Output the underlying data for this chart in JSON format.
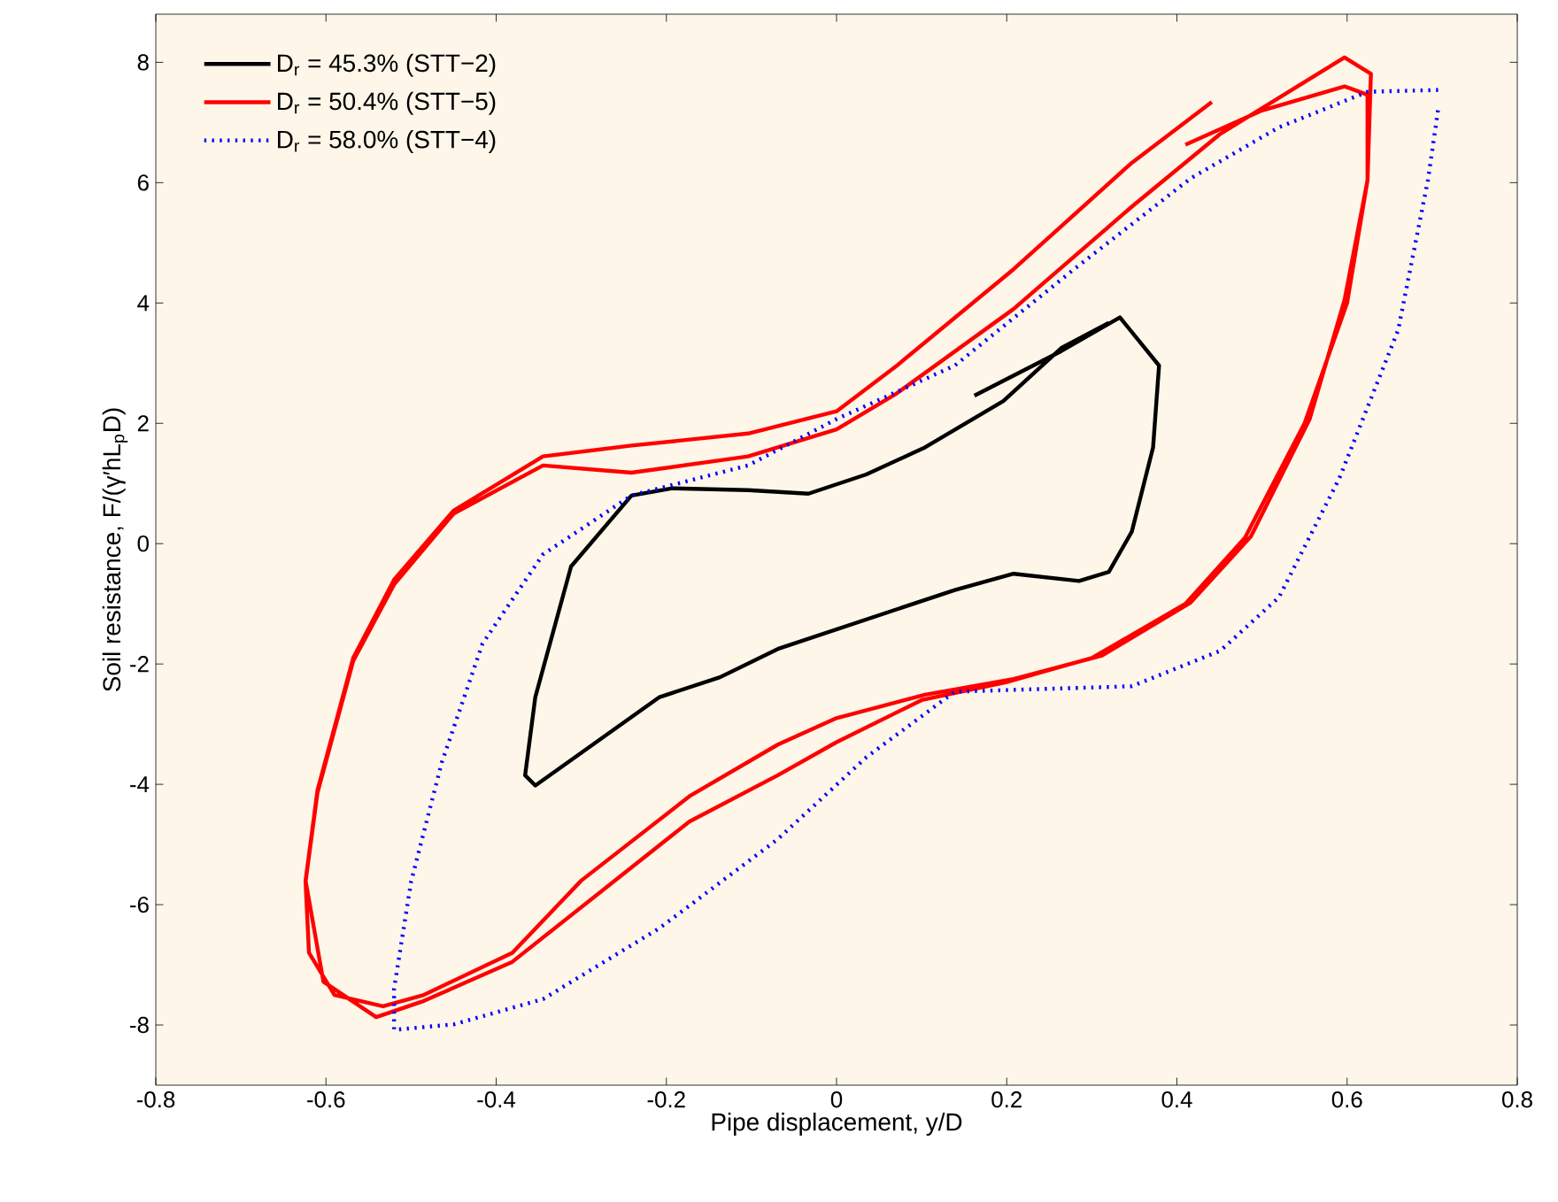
{
  "chart_data": {
    "type": "line",
    "xlabel": "Pipe displacement, y/D",
    "ylabel": "Soil resistance, F/(γ′hL$_{p}$D)",
    "xlim": [
      -0.8,
      0.8
    ],
    "ylim": [
      -9,
      8.8
    ],
    "xticks": [
      -0.8,
      -0.6,
      -0.4,
      -0.2,
      0,
      0.2,
      0.4,
      0.6,
      0.8
    ],
    "yticks": [
      -8,
      -6,
      -4,
      -2,
      0,
      2,
      4,
      6,
      8
    ],
    "grid": false,
    "legend": "top left",
    "series": [
      {
        "name": "D$_{r}$ = 45.3% (STT−2)",
        "color": "#000000",
        "line_style": "solid",
        "x": [
          0.162,
          0.264,
          0.333,
          0.379,
          0.372,
          0.347,
          0.32,
          0.285,
          0.208,
          0.139,
          -0.069,
          -0.137,
          -0.208,
          -0.354,
          -0.366,
          -0.354,
          -0.312,
          -0.241,
          -0.193,
          -0.104,
          -0.033,
          0.035,
          0.104,
          0.196,
          0.264,
          0.32
        ],
        "values": [
          2.46,
          3.2,
          3.76,
          2.96,
          1.6,
          0.2,
          -0.47,
          -0.62,
          -0.5,
          -0.77,
          -1.75,
          -2.22,
          -2.55,
          -4.02,
          -3.85,
          -2.55,
          -0.38,
          0.8,
          0.92,
          0.89,
          0.83,
          1.15,
          1.6,
          2.37,
          3.25,
          3.67
        ]
      },
      {
        "name": "D$_{r}$ = 50.4% (STT−5)",
        "color": "#ff0000",
        "line_style": "solid",
        "x": [
          0.41,
          0.5,
          0.597,
          0.624,
          0.624,
          0.597,
          0.556,
          0.487,
          0.416,
          0.312,
          0.208,
          0.104,
          0,
          -0.069,
          -0.173,
          -0.3,
          -0.381,
          -0.485,
          -0.533,
          -0.59,
          -0.62,
          -0.624,
          -0.61,
          -0.568,
          -0.52,
          -0.45,
          -0.345,
          -0.241,
          -0.104,
          0,
          0.071,
          0.208,
          0.347,
          0.45,
          0.597,
          0.628,
          0.624,
          0.6,
          0.55,
          0.48,
          0.41,
          0.3,
          0.2,
          0.1,
          0,
          -0.069,
          -0.173,
          -0.381,
          -0.485,
          -0.541,
          -0.603,
          -0.624,
          -0.61,
          -0.568,
          -0.52,
          -0.45,
          -0.345,
          -0.241,
          -0.104,
          0,
          0.071,
          0.208,
          0.347,
          0.441
        ],
        "values": [
          6.63,
          7.2,
          7.6,
          7.46,
          6.04,
          4.05,
          2.07,
          0.12,
          -0.98,
          -1.86,
          -2.25,
          -2.51,
          -2.9,
          -3.34,
          -4.2,
          -5.6,
          -6.8,
          -7.5,
          -7.69,
          -7.5,
          -6.8,
          -5.62,
          -4.14,
          -1.95,
          -0.68,
          0.5,
          1.3,
          1.18,
          1.45,
          1.9,
          2.5,
          3.9,
          5.6,
          6.8,
          8.08,
          7.81,
          6.04,
          4.0,
          2.0,
          0.1,
          -1.0,
          -1.9,
          -2.3,
          -2.6,
          -3.3,
          -3.85,
          -4.62,
          -6.95,
          -7.6,
          -7.87,
          -7.28,
          -5.6,
          -4.1,
          -1.9,
          -0.6,
          0.55,
          1.45,
          1.63,
          1.83,
          2.2,
          2.96,
          4.56,
          6.33,
          7.34
        ]
      },
      {
        "name": "D$_{r}$ = 58.0% (STT−4)",
        "color": "#0000ff",
        "line_style": "dotted",
        "x": [
          0.707,
          0.624,
          0.52,
          0.416,
          0.279,
          0.139,
          0,
          -0.104,
          -0.241,
          -0.345,
          -0.416,
          -0.464,
          -0.5,
          -0.52,
          -0.52,
          -0.45,
          -0.345,
          -0.208,
          -0.069,
          0.035,
          0.139,
          0.347,
          0.451,
          0.52,
          0.591,
          0.66,
          0.695,
          0.707
        ],
        "values": [
          7.54,
          7.51,
          6.92,
          6.07,
          4.56,
          2.96,
          2.07,
          1.3,
          0.8,
          -0.18,
          -1.66,
          -3.64,
          -5.62,
          -7.4,
          -8.08,
          -7.99,
          -7.57,
          -6.39,
          -4.91,
          -3.55,
          -2.46,
          -2.37,
          -1.78,
          -0.89,
          1.09,
          3.55,
          6.04,
          7.22
        ]
      }
    ]
  }
}
